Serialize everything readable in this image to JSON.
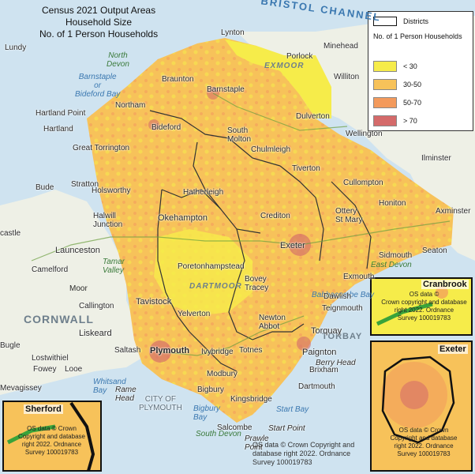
{
  "title": {
    "line1": "Census 2021 Output Areas",
    "line2": "Household Size",
    "line3": "No. of 1 Person Households"
  },
  "legend": {
    "districts_label": "Districts",
    "heading": "No. of 1 Person Households",
    "classes": [
      {
        "label": "< 30",
        "color": "#f6ec4a"
      },
      {
        "label": "30-50",
        "color": "#f7c25a"
      },
      {
        "label": "50-70",
        "color": "#f39a5c"
      },
      {
        "label": "> 70",
        "color": "#d46a6a"
      }
    ]
  },
  "places": {
    "lundy": "Lundy",
    "lynton": "Lynton",
    "minehead": "Minehead",
    "porlock": "Porlock",
    "williton": "Williton",
    "braunton": "Braunton",
    "barnstaple": "Barnstaple",
    "northam": "Northam",
    "hartland_point": "Hartland Point",
    "hartland": "Hartland",
    "bideford": "Bideford",
    "great_torrington": "Great Torrington",
    "south_molton": "South\nMolton",
    "chulmleigh": "Chulmleigh",
    "dulverton": "Dulverton",
    "wellington": "Wellington",
    "tiverton": "Tiverton",
    "ilminster": "Ilminster",
    "bude": "Bude",
    "stratton": "Stratton",
    "holsworthy": "Holsworthy",
    "halwill_junction": "Halwill\nJunction",
    "hatherleigh": "Hatherleigh",
    "okehampton": "Okehampton",
    "crediton": "Crediton",
    "cullompton": "Cullompton",
    "honiton": "Honiton",
    "axminster": "Axminster",
    "ottery": "Ottery\nSt Mary",
    "exeter": "Exeter",
    "sidmouth": "Sidmouth",
    "seaton": "Seaton",
    "exmouth": "Exmouth",
    "launceston": "Launceston",
    "camelford": "Camelford",
    "castle": "castle",
    "callington": "Callington",
    "tavistock": "Tavistock",
    "poretonhampstead": "Poretonhampstead",
    "bovey_tracey": "Bovey\nTracey",
    "dawlish": "Dawlish",
    "teignmouth": "Teignmouth",
    "newton_abbot": "Newton\nAbbot",
    "torquay": "Torquay",
    "paignton": "Paignton",
    "brixham": "Brixham",
    "berry_head": "Berry Head",
    "dartmouth": "Dartmouth",
    "totnes": "Totnes",
    "ivybridge": "Ivybridge",
    "plymouth": "Plymouth",
    "saltash": "Saltash",
    "liskeard": "Liskeard",
    "lostwithiel": "Lostwithiel",
    "bugle": "Bugle",
    "fowey": "Fowey",
    "looe": "Looe",
    "mevagissey": "Mevagissey",
    "yelverton": "Yelverton",
    "kingsbridge": "Kingsbridge",
    "salcombe": "Salcombe",
    "prawle_point": "Prawle\nPoint",
    "start_point": "Start Point",
    "rame_head": "Rame\nHead",
    "modbury": "Modbury",
    "bigbury": "Bigbury",
    "city_of_plymouth": "CITY OF\nPLYMOUTH"
  },
  "regions": {
    "cornwall": "CORNWALL",
    "torbay": "TORBAY",
    "dartmoor": "DARTMOOR",
    "exmoor": "EXMOOR",
    "bodmin_moor": "Moor"
  },
  "water": {
    "bristol_channel": "BRISTOL CHANNEL",
    "barnstaple_bay": "Barnstaple\nor\nBideford Bay",
    "lyme_bay": "Babbacombe Bay",
    "whitsand_bay": "Whitsand\nBay",
    "bigbury_bay": "Bigbury\nBay",
    "start_bay": "Start Bay",
    "tamar_valley": "Tamar\nValley"
  },
  "areas": {
    "north_devon": "North\nDevon",
    "east_devon": "East Devon",
    "south_devon": "South Devon"
  },
  "insets": {
    "cranbrook": {
      "title": "Cranbrook",
      "note": "OS data ©\nCrown copyright and database\nright 2022. Ordnance\nSurvey 100019783"
    },
    "exeter": {
      "title": "Exeter",
      "note": "OS data © Crown\nCopyright and database\nright 2022. Ordnance\nSurvey 100019783"
    },
    "sherford": {
      "title": "Sherford",
      "note": "OS data © Crown\nCopyright and database\nright 2022. Ordnance\nSurvey 100019783"
    }
  },
  "credit": "OS data © Crown Copyright and database right 2022. Ordnance Survey 100019783"
}
